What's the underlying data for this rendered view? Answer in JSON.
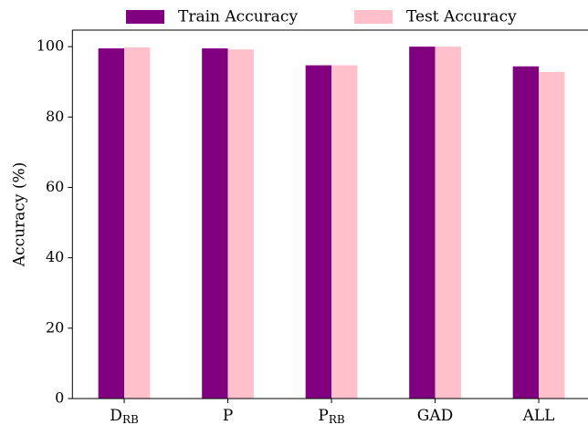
{
  "chart_data": {
    "type": "grouped_bar",
    "categories": [
      "D",
      "P",
      "P",
      "GAD",
      "ALL"
    ],
    "category_subscripts": [
      "RB",
      null,
      "RB",
      null,
      null
    ],
    "series": [
      {
        "name": "Train Accuracy",
        "color": "#800080",
        "values": [
          99.5,
          99.5,
          94.7,
          100,
          94.4
        ]
      },
      {
        "name": "Test Accuracy",
        "color": "#ffc0cb",
        "values": [
          99.8,
          99.2,
          94.7,
          100,
          92.8
        ]
      }
    ],
    "ylabel": "Accuracy (%)",
    "ylim": [
      0,
      104.7
    ],
    "yticks": [
      0,
      20,
      40,
      60,
      80,
      100
    ],
    "legend": "top",
    "grid": false
  }
}
